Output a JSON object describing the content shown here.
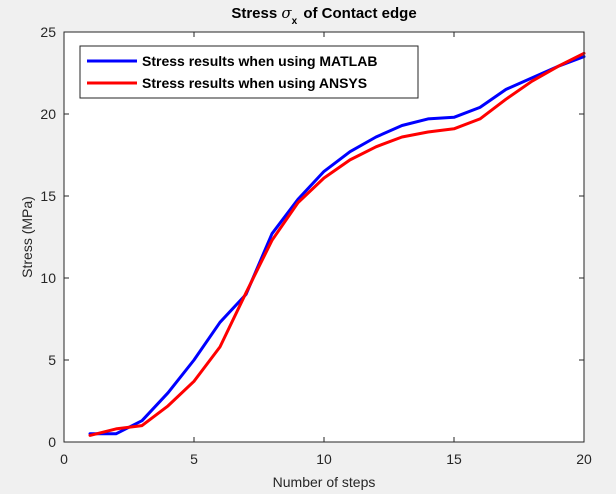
{
  "chart_data": {
    "type": "line",
    "title": {
      "prefix": "Stress ",
      "symbol": "σ",
      "subscript": "x",
      "suffix": " of Contact edge"
    },
    "xlabel": "Number of steps",
    "ylabel": "Stress (MPa)",
    "xlim": [
      0,
      20
    ],
    "ylim": [
      0,
      25
    ],
    "xticks": [
      0,
      5,
      10,
      15,
      20
    ],
    "yticks": [
      0,
      5,
      10,
      15,
      20,
      25
    ],
    "grid": false,
    "legend_position": "top-left",
    "series": [
      {
        "name": "Stress results when using MATLAB",
        "color": "#0000ff",
        "x": [
          1,
          2,
          3,
          4,
          5,
          6,
          7,
          8,
          9,
          10,
          11,
          12,
          13,
          14,
          15,
          16,
          17,
          18,
          19,
          20
        ],
        "y": [
          0.5,
          0.5,
          1.3,
          3.0,
          5.0,
          7.3,
          9.0,
          12.7,
          14.8,
          16.5,
          17.7,
          18.6,
          19.3,
          19.7,
          19.8,
          20.4,
          21.5,
          22.2,
          22.9,
          23.5
        ]
      },
      {
        "name": "Stress results when using ANSYS",
        "color": "#ff0000",
        "x": [
          1,
          2,
          3,
          4,
          5,
          6,
          7,
          8,
          9,
          10,
          11,
          12,
          13,
          14,
          15,
          16,
          17,
          18,
          19,
          20
        ],
        "y": [
          0.4,
          0.8,
          1.0,
          2.2,
          3.7,
          5.8,
          9.1,
          12.3,
          14.6,
          16.1,
          17.2,
          18.0,
          18.6,
          18.9,
          19.1,
          19.7,
          20.9,
          22.0,
          22.9,
          23.7
        ]
      }
    ]
  }
}
